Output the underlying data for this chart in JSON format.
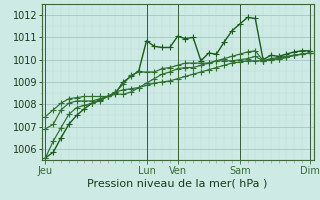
{
  "bg_color": "#ceeae4",
  "grid_major_color": "#a8ccc6",
  "grid_minor_color": "#bcddd8",
  "line_color1": "#1a5c1a",
  "line_color2": "#2d7030",
  "xlabel": "Pression niveau de la mer( hPa )",
  "xlabel_fontsize": 8,
  "tick_fontsize": 7,
  "ylim": [
    1005.5,
    1012.5
  ],
  "yticks": [
    1006,
    1007,
    1008,
    1009,
    1010,
    1011,
    1012
  ],
  "x_day_labels": [
    "Jeu",
    "Lun",
    "Ven",
    "Sam",
    "Dim"
  ],
  "x_day_positions": [
    0,
    13,
    17,
    25,
    34
  ],
  "num_points": 35,
  "series1": [
    1005.6,
    1005.85,
    1006.5,
    1007.1,
    1007.5,
    1007.8,
    1008.05,
    1008.2,
    1008.35,
    1008.5,
    1009.0,
    1009.25,
    1009.5,
    1010.85,
    1010.6,
    1010.55,
    1010.55,
    1011.05,
    1010.95,
    1011.0,
    1009.95,
    1010.3,
    1010.25,
    1010.8,
    1011.3,
    1011.6,
    1011.9,
    1011.85,
    1010.0,
    1010.2,
    1010.15,
    1010.25,
    1010.35,
    1010.4,
    1010.4
  ],
  "series2": [
    1005.6,
    1006.35,
    1006.95,
    1007.55,
    1007.85,
    1007.95,
    1008.05,
    1008.15,
    1008.35,
    1008.55,
    1008.65,
    1008.7,
    1008.75,
    1008.85,
    1008.95,
    1009.0,
    1009.05,
    1009.15,
    1009.25,
    1009.35,
    1009.45,
    1009.55,
    1009.65,
    1009.75,
    1009.85,
    1009.9,
    1009.95,
    1009.95,
    1009.95,
    1010.0,
    1010.05,
    1010.1,
    1010.2,
    1010.25,
    1010.3
  ],
  "series3": [
    1006.9,
    1007.1,
    1007.75,
    1008.05,
    1008.15,
    1008.15,
    1008.15,
    1008.25,
    1008.35,
    1008.55,
    1008.9,
    1009.3,
    1009.45,
    1009.45,
    1009.45,
    1009.6,
    1009.65,
    1009.75,
    1009.85,
    1009.85,
    1009.85,
    1009.85,
    1009.95,
    1010.05,
    1010.15,
    1010.25,
    1010.35,
    1010.4,
    1009.95,
    1010.05,
    1010.1,
    1010.15,
    1010.2,
    1010.25,
    1010.3
  ],
  "series4": [
    1007.45,
    1007.75,
    1008.05,
    1008.25,
    1008.3,
    1008.35,
    1008.35,
    1008.35,
    1008.35,
    1008.45,
    1008.45,
    1008.55,
    1008.75,
    1008.95,
    1009.15,
    1009.35,
    1009.45,
    1009.6,
    1009.65,
    1009.65,
    1009.75,
    1009.85,
    1009.95,
    1009.95,
    1009.95,
    1010.0,
    1010.05,
    1010.15,
    1009.95,
    1010.0,
    1010.05,
    1010.1,
    1010.2,
    1010.25,
    1010.3
  ],
  "spine_color": "#3a6a3a",
  "vline_color": "#3a5a3a"
}
